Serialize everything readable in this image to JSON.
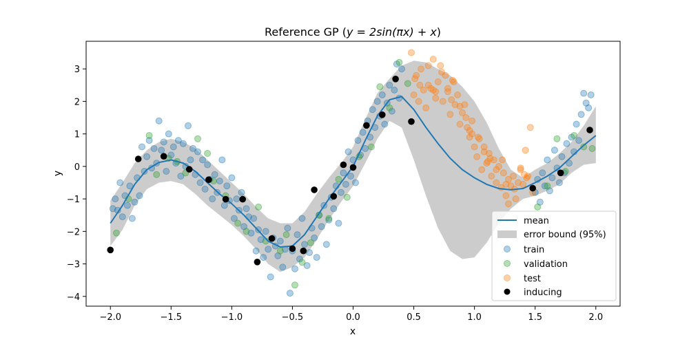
{
  "chart_data": {
    "type": "scatter",
    "title": "Reference GP (y = 2sin(πx) + x)",
    "title_plain": "Reference GP (",
    "title_eq": "y = 2sin(πx) + x",
    "title_close": ")",
    "xlabel": "x",
    "ylabel": "y",
    "xlim": [
      -2.2,
      2.2
    ],
    "ylim": [
      -4.3,
      3.85
    ],
    "xticks": [
      -2.0,
      -1.5,
      -1.0,
      -0.5,
      0.0,
      0.5,
      1.0,
      1.5,
      2.0
    ],
    "xtick_labels": [
      "−2.0",
      "−1.5",
      "−1.0",
      "−0.5",
      "0.0",
      "0.5",
      "1.0",
      "1.5",
      "2.0"
    ],
    "yticks": [
      -4,
      -3,
      -2,
      -1,
      0,
      1,
      2,
      3
    ],
    "ytick_labels": [
      "−4",
      "−3",
      "−2",
      "−1",
      "0",
      "1",
      "2",
      "3"
    ],
    "grid": false,
    "legend_position": "lower-right",
    "legend": {
      "mean": "mean",
      "error_bound": "error bound (95%)",
      "train": "train",
      "validation": "validation",
      "test": "test",
      "inducing": "inducing"
    },
    "colors": {
      "mean": "#1f77b4",
      "band": "#cccccc",
      "train": "#1f77b4",
      "validation": "#2ca02c",
      "test": "#ff7f0e",
      "inducing": "#000000"
    },
    "mean": {
      "x": [
        -2.0,
        -1.9,
        -1.8,
        -1.7,
        -1.6,
        -1.5,
        -1.4,
        -1.3,
        -1.2,
        -1.1,
        -1.0,
        -0.9,
        -0.8,
        -0.7,
        -0.6,
        -0.5,
        -0.4,
        -0.3,
        -0.2,
        -0.1,
        0.0,
        0.1,
        0.2,
        0.3,
        0.4,
        0.5,
        0.6,
        0.7,
        0.8,
        0.9,
        1.0,
        1.1,
        1.2,
        1.3,
        1.4,
        1.5,
        1.6,
        1.7,
        1.8,
        1.9,
        2.0
      ],
      "y": [
        -1.75,
        -1.2,
        -0.55,
        -0.1,
        0.12,
        0.2,
        0.1,
        -0.15,
        -0.5,
        -0.85,
        -1.15,
        -1.5,
        -1.9,
        -2.3,
        -2.48,
        -2.45,
        -2.1,
        -1.55,
        -1.0,
        -0.5,
        0.0,
        0.8,
        1.55,
        2.05,
        2.15,
        1.75,
        1.2,
        0.7,
        0.25,
        -0.1,
        -0.35,
        -0.55,
        -0.68,
        -0.72,
        -0.68,
        -0.5,
        -0.3,
        -0.05,
        0.3,
        0.65,
        0.95
      ]
    },
    "error_band": {
      "x": [
        -2.0,
        -1.9,
        -1.8,
        -1.7,
        -1.6,
        -1.5,
        -1.4,
        -1.3,
        -1.2,
        -1.1,
        -1.0,
        -0.9,
        -0.8,
        -0.7,
        -0.6,
        -0.5,
        -0.4,
        -0.3,
        -0.2,
        -0.1,
        0.0,
        0.1,
        0.2,
        0.3,
        0.4,
        0.5,
        0.6,
        0.7,
        0.8,
        0.9,
        1.0,
        1.1,
        1.2,
        1.3,
        1.4,
        1.5,
        1.6,
        1.7,
        1.8,
        1.9,
        2.0
      ],
      "lower": [
        -2.45,
        -1.95,
        -1.2,
        -0.7,
        -0.5,
        -0.45,
        -0.55,
        -0.85,
        -1.2,
        -1.5,
        -1.8,
        -2.15,
        -2.55,
        -3.0,
        -3.25,
        -3.1,
        -2.8,
        -2.25,
        -1.65,
        -1.1,
        -0.6,
        0.1,
        0.85,
        1.4,
        1.2,
        0.2,
        -0.9,
        -1.9,
        -2.6,
        -2.85,
        -2.8,
        -2.35,
        -1.75,
        -1.3,
        -1.0,
        -0.9,
        -0.75,
        -0.55,
        -0.2,
        0.05,
        0.1
      ],
      "upper": [
        -1.05,
        -0.5,
        0.1,
        0.5,
        0.75,
        0.85,
        0.75,
        0.55,
        0.2,
        -0.15,
        -0.5,
        -0.85,
        -1.25,
        -1.6,
        -1.75,
        -1.75,
        -1.4,
        -0.85,
        -0.35,
        0.1,
        0.6,
        1.45,
        2.25,
        2.7,
        3.1,
        3.25,
        3.2,
        3.0,
        2.8,
        2.45,
        2.0,
        1.35,
        0.55,
        -0.1,
        -0.35,
        -0.1,
        0.1,
        0.4,
        0.75,
        1.25,
        1.85
      ]
    },
    "inducing": {
      "x": [
        -2.0,
        -1.77,
        -1.56,
        -1.35,
        -1.19,
        -1.05,
        -0.91,
        -0.79,
        -0.67,
        -0.5,
        -0.41,
        -0.32,
        -0.16,
        -0.08,
        0.0,
        0.11,
        0.24,
        0.35,
        0.48,
        1.48,
        1.71,
        1.95
      ],
      "y": [
        -2.57,
        0.23,
        0.31,
        -0.09,
        -0.41,
        -1.01,
        -1.01,
        -2.94,
        -2.22,
        -2.53,
        -2.6,
        -0.72,
        -0.92,
        0.05,
        -0.03,
        1.26,
        1.59,
        2.69,
        1.38,
        -0.67,
        -0.2,
        1.12
      ]
    },
    "train": {
      "x": [
        -1.98,
        -1.96,
        -1.94,
        -1.92,
        -1.9,
        -1.88,
        -1.86,
        -1.84,
        -1.82,
        -1.8,
        -1.78,
        -1.76,
        -1.74,
        -1.72,
        -1.7,
        -1.68,
        -1.66,
        -1.64,
        -1.62,
        -1.6,
        -1.58,
        -1.56,
        -1.54,
        -1.52,
        -1.5,
        -1.48,
        -1.46,
        -1.44,
        -1.42,
        -1.4,
        -1.38,
        -1.36,
        -1.34,
        -1.32,
        -1.3,
        -1.28,
        -1.26,
        -1.24,
        -1.22,
        -1.2,
        -1.18,
        -1.16,
        -1.14,
        -1.12,
        -1.1,
        -1.08,
        -1.06,
        -1.04,
        -1.02,
        -1.0,
        -0.98,
        -0.96,
        -0.94,
        -0.92,
        -0.9,
        -0.88,
        -0.86,
        -0.84,
        -0.82,
        -0.8,
        -0.78,
        -0.76,
        -0.74,
        -0.72,
        -0.7,
        -0.68,
        -0.66,
        -0.64,
        -0.62,
        -0.6,
        -0.58,
        -0.56,
        -0.54,
        -0.52,
        -0.5,
        -0.48,
        -0.46,
        -0.44,
        -0.42,
        -0.4,
        -0.38,
        -0.36,
        -0.34,
        -0.32,
        -0.3,
        -0.28,
        -0.26,
        -0.24,
        -0.22,
        -0.2,
        -0.18,
        -0.16,
        -0.14,
        -0.12,
        -0.1,
        -0.08,
        -0.06,
        -0.04,
        -0.02,
        0.0,
        0.02,
        0.04,
        0.06,
        0.08,
        0.1,
        0.12,
        0.14,
        0.16,
        0.18,
        0.2,
        0.22,
        0.24,
        0.26,
        0.28,
        0.3,
        0.32,
        0.34,
        0.36,
        0.38,
        0.4,
        1.5,
        1.52,
        1.54,
        1.56,
        1.58,
        1.6,
        1.62,
        1.64,
        1.66,
        1.68,
        1.7,
        1.72,
        1.74,
        1.76,
        1.78,
        1.8,
        1.82,
        1.84,
        1.86,
        1.88,
        1.9,
        1.92,
        1.94,
        1.96
      ],
      "y": [
        -1.3,
        -1.0,
        -1.35,
        -0.5,
        -1.55,
        -0.9,
        -1.2,
        -0.6,
        -1.6,
        -1.1,
        -0.35,
        -0.9,
        0.6,
        -0.15,
        0.3,
        0.8,
        -0.05,
        0.55,
        0.1,
        1.4,
        0.5,
        0.75,
        -0.15,
        1.0,
        0.35,
        0.6,
        0.1,
        0.8,
        -0.3,
        0.7,
        0.0,
        1.25,
        0.2,
        0.55,
        -0.25,
        0.45,
        -0.5,
        0.2,
        -0.7,
        0.05,
        -0.4,
        -1.0,
        -0.25,
        -0.8,
        -0.45,
        0.2,
        -1.2,
        -0.6,
        -1.05,
        -0.35,
        -1.6,
        -1.0,
        -1.35,
        -0.8,
        -1.85,
        -1.3,
        -1.55,
        -2.05,
        -1.6,
        -2.6,
        -1.95,
        -2.25,
        -2.8,
        -2.0,
        -2.55,
        -3.4,
        -2.2,
        -2.45,
        -2.75,
        -2.3,
        -3.1,
        -2.55,
        -1.9,
        -3.9,
        -2.6,
        -3.15,
        -2.1,
        -2.85,
        -1.6,
        -2.4,
        -3.05,
        -2.65,
        -1.9,
        -2.2,
        -2.8,
        -1.5,
        -1.85,
        -1.2,
        -2.4,
        -1.65,
        -0.95,
        -1.3,
        -0.6,
        -1.75,
        -0.8,
        -0.2,
        -0.55,
        0.45,
        -0.3,
        0.2,
        -0.5,
        0.8,
        0.35,
        1.05,
        0.55,
        1.4,
        0.9,
        1.75,
        1.2,
        2.0,
        1.55,
        2.2,
        1.3,
        1.95,
        2.5,
        1.7,
        2.35,
        3.15,
        2.1,
        3.0,
        -0.8,
        -0.4,
        -1.1,
        -0.2,
        -0.6,
        0.2,
        -0.75,
        -0.35,
        0.5,
        -0.05,
        -0.5,
        0.3,
        -0.2,
        0.7,
        0.1,
        0.9,
        0.45,
        1.3,
        0.8,
        1.6,
        2.25,
        1.95,
        1.8,
        2.2
      ]
    },
    "validation": {
      "x": [
        -1.95,
        -1.85,
        -1.68,
        -1.62,
        -1.52,
        -1.45,
        -1.38,
        -1.28,
        -1.2,
        -1.15,
        -1.05,
        -0.95,
        -0.88,
        -0.78,
        -0.72,
        -0.6,
        -0.55,
        -0.48,
        -0.42,
        -0.35,
        -0.28,
        -0.2,
        -0.12,
        -0.05,
        0.05,
        0.15,
        0.22,
        0.3,
        0.38,
        0.45,
        1.52,
        1.6,
        1.68,
        1.75,
        1.82,
        1.9,
        1.97
      ],
      "y": [
        -2.05,
        -1.0,
        0.95,
        -0.25,
        0.25,
        0.15,
        -0.2,
        0.85,
        0.4,
        -0.45,
        -0.9,
        -1.75,
        -2.0,
        -1.25,
        -2.3,
        -2.6,
        -2.1,
        -3.65,
        -2.95,
        -2.35,
        -1.5,
        -1.6,
        -0.4,
        -0.95,
        0.3,
        0.6,
        2.45,
        1.8,
        3.2,
        2.55,
        -1.25,
        -0.6,
        0.85,
        -0.15,
        0.95,
        0.6,
        0.55
      ]
    },
    "test": {
      "x": [
        0.48,
        0.5,
        0.52,
        0.54,
        0.56,
        0.58,
        0.6,
        0.62,
        0.64,
        0.66,
        0.68,
        0.7,
        0.72,
        0.74,
        0.76,
        0.78,
        0.8,
        0.82,
        0.84,
        0.86,
        0.88,
        0.9,
        0.92,
        0.94,
        0.96,
        0.98,
        1.0,
        1.02,
        1.04,
        1.06,
        1.08,
        1.1,
        1.12,
        1.14,
        1.16,
        1.18,
        1.2,
        1.22,
        1.24,
        1.26,
        1.28,
        1.3,
        1.32,
        1.34,
        1.36,
        1.38,
        1.4,
        1.42,
        1.44,
        1.46,
        0.55,
        0.62,
        0.68,
        0.73,
        0.78,
        0.83,
        0.88,
        0.93,
        0.98,
        1.03,
        1.08,
        1.13,
        1.18,
        1.23,
        1.28,
        1.33,
        1.38,
        1.43,
        1.48,
        0.51,
        0.66,
        0.81,
        0.96,
        1.11,
        1.26,
        1.41
      ],
      "y": [
        3.5,
        2.2,
        2.8,
        2.0,
        3.0,
        2.35,
        1.8,
        2.5,
        2.4,
        3.3,
        2.1,
        2.6,
        3.1,
        2.0,
        2.8,
        2.3,
        1.6,
        2.65,
        1.9,
        2.2,
        1.3,
        1.65,
        1.9,
        1.2,
        0.9,
        1.4,
        0.6,
        0.3,
        0.85,
        -0.1,
        0.6,
        0.1,
        0.4,
        -0.3,
        0.2,
        -0.5,
        0.0,
        -0.65,
        -0.2,
        -0.9,
        -0.4,
        -0.6,
        -0.3,
        -1.0,
        -0.5,
        -0.1,
        -0.55,
        0.5,
        -0.3,
        1.2,
        2.5,
        3.1,
        2.3,
        2.9,
        2.4,
        2.6,
        1.85,
        1.5,
        1.0,
        0.9,
        0.45,
        0.25,
        -0.1,
        0.2,
        -1.15,
        -0.7,
        -0.05,
        -0.35,
        -0.8,
        2.7,
        2.35,
        2.05,
        1.1,
        0.15,
        -0.55,
        -0.25
      ]
    }
  }
}
